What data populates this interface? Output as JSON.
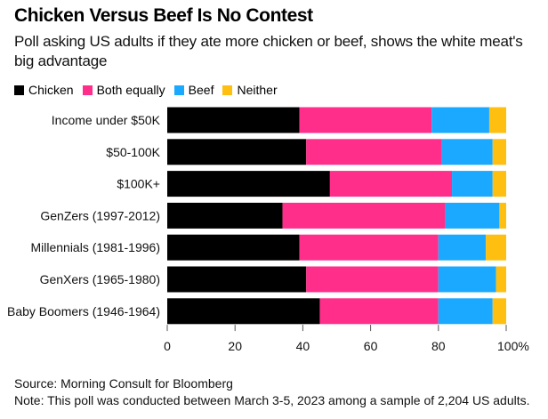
{
  "chart_data": {
    "type": "bar",
    "orientation": "horizontal",
    "stacked": true,
    "title": "Chicken Versus Beef Is No Contest",
    "subtitle": "Poll asking US adults if they ate more chicken or beef, shows the white meat's big advantage",
    "categories": [
      "Income under $50K",
      "$50-100K",
      "$100K+",
      "GenZers (1997-2012)",
      "Millennials (1981-1996)",
      "GenXers (1965-1980)",
      "Baby Boomers (1946-1964)"
    ],
    "series": [
      {
        "name": "Chicken",
        "color": "#000000",
        "values": [
          39,
          41,
          48,
          34,
          39,
          41,
          45
        ]
      },
      {
        "name": "Both equally",
        "color": "#ff2e8a",
        "values": [
          39,
          40,
          36,
          48,
          41,
          39,
          35
        ]
      },
      {
        "name": "Beef",
        "color": "#1aa9ff",
        "values": [
          17,
          15,
          12,
          16,
          14,
          17,
          16
        ]
      },
      {
        "name": "Neither",
        "color": "#ffbf10",
        "values": [
          5,
          4,
          4,
          2,
          6,
          3,
          4
        ]
      }
    ],
    "xlim": [
      0,
      100
    ],
    "xticks": [
      0,
      20,
      40,
      60,
      80,
      100
    ],
    "xtick_labels": [
      "0",
      "20",
      "40",
      "60",
      "80",
      "100%"
    ],
    "xlabel": "",
    "ylabel": "",
    "legend_position": "top-left",
    "grid": false
  },
  "footer": {
    "source": "Source: Morning Consult for Bloomberg",
    "note": "Note: This poll was conducted between March 3-5, 2023 among a sample of 2,204 US adults."
  }
}
